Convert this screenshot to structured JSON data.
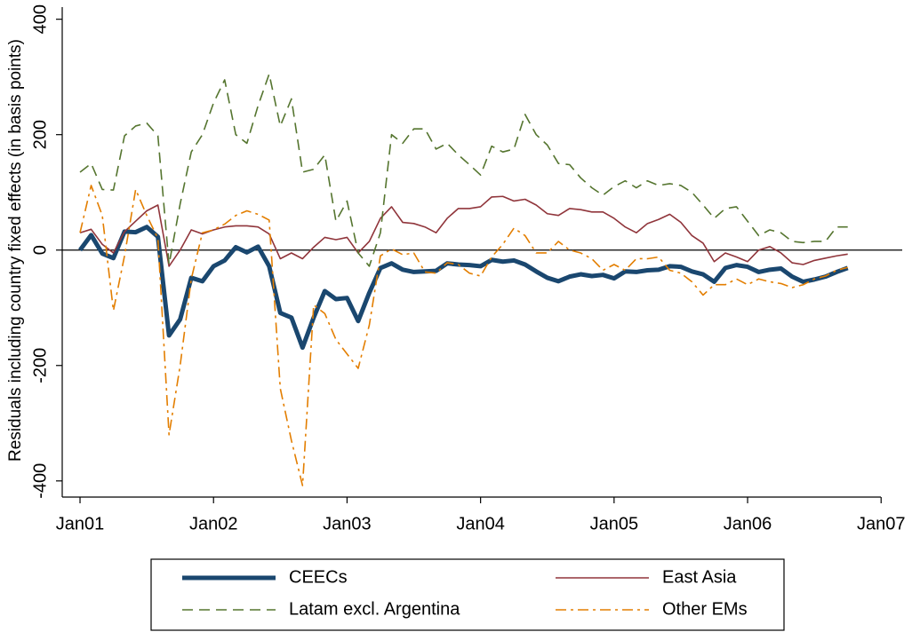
{
  "chart_data": {
    "type": "line",
    "y_label": "Residuals including country fixed effects (in basis points)",
    "x": [
      0,
      1,
      2,
      3,
      4,
      5,
      6,
      7,
      8,
      9,
      10,
      11,
      12,
      13,
      14,
      15,
      16,
      17,
      18,
      19,
      20,
      21,
      22,
      23,
      24,
      25,
      26,
      27,
      28,
      29,
      30,
      31,
      32,
      33,
      34,
      35,
      36,
      37,
      38,
      39,
      40,
      41,
      42,
      43,
      44,
      45,
      46,
      47,
      48,
      49,
      50,
      51,
      52,
      53,
      54,
      55,
      56,
      57,
      58,
      59,
      60,
      61,
      62,
      63,
      64,
      65,
      66,
      67,
      68,
      69
    ],
    "xlim": [
      -1.6,
      72.3
    ],
    "xticks": [
      {
        "value": 0,
        "label": "Jan01"
      },
      {
        "value": 12,
        "label": "Jan02"
      },
      {
        "value": 24,
        "label": "Jan03"
      },
      {
        "value": 36,
        "label": "Jan04"
      },
      {
        "value": 48,
        "label": "Jan05"
      },
      {
        "value": 60,
        "label": "Jan06"
      },
      {
        "value": 72,
        "label": "Jan07"
      }
    ],
    "ylim": [
      -428,
      421
    ],
    "yticks": [
      -400,
      -200,
      0,
      200,
      400
    ],
    "legend": "bottom",
    "series": [
      {
        "name": "CEECs",
        "color": "#1a476f",
        "width": 5,
        "dash": "none",
        "values": [
          0,
          26,
          -6,
          -14,
          32,
          31,
          40,
          23,
          -148,
          -120,
          -48,
          -54,
          -28,
          -18,
          5,
          -4,
          6,
          -28,
          -109,
          -117,
          -169,
          -117,
          -71,
          -85,
          -83,
          -123,
          -74,
          -31,
          -23,
          -34,
          -38,
          -37,
          -36,
          -23,
          -25,
          -26,
          -28,
          -17,
          -20,
          -18,
          -25,
          -37,
          -48,
          -54,
          -46,
          -42,
          -45,
          -43,
          -49,
          -37,
          -38,
          -35,
          -34,
          -28,
          -29,
          -37,
          -42,
          -55,
          -31,
          -26,
          -29,
          -38,
          -34,
          -32,
          -46,
          -55,
          -51,
          -46,
          -38,
          -31
        ]
      },
      {
        "name": "East Asia",
        "color": "#90353b",
        "width": 1.6,
        "dash": "none",
        "values": [
          30,
          36,
          10,
          -5,
          32,
          50,
          68,
          78,
          -28,
          0,
          35,
          28,
          35,
          40,
          42,
          42,
          40,
          28,
          -15,
          -5,
          -15,
          5,
          22,
          18,
          22,
          -5,
          15,
          55,
          75,
          48,
          46,
          40,
          30,
          55,
          72,
          72,
          75,
          92,
          93,
          85,
          88,
          78,
          63,
          60,
          72,
          70,
          66,
          66,
          55,
          40,
          30,
          46,
          53,
          62,
          48,
          25,
          12,
          -20,
          -5,
          -12,
          -20,
          0,
          6,
          -5,
          -22,
          -25,
          -18,
          -14,
          -10,
          -7
        ]
      },
      {
        "name": "Latam excl. Argentina",
        "color": "#55752f",
        "width": 1.6,
        "dash": "12 7",
        "values": [
          135,
          150,
          105,
          104,
          198,
          215,
          220,
          198,
          -25,
          80,
          170,
          200,
          255,
          295,
          200,
          185,
          250,
          305,
          215,
          262,
          135,
          140,
          165,
          50,
          85,
          -5,
          -28,
          30,
          200,
          185,
          210,
          210,
          175,
          185,
          165,
          148,
          130,
          180,
          170,
          175,
          235,
          200,
          182,
          150,
          148,
          125,
          108,
          95,
          110,
          120,
          108,
          120,
          112,
          115,
          112,
          100,
          78,
          55,
          72,
          75,
          50,
          25,
          35,
          30,
          15,
          13,
          15,
          15,
          40,
          40
        ]
      },
      {
        "name": "Other EMs",
        "color": "#e37e00",
        "width": 1.6,
        "dash": "12 5 3 5",
        "values": [
          30,
          112,
          60,
          -105,
          -10,
          105,
          60,
          20,
          -320,
          -200,
          -50,
          30,
          35,
          45,
          60,
          68,
          62,
          52,
          -240,
          -330,
          -408,
          -95,
          -110,
          -155,
          -180,
          -205,
          -130,
          -10,
          2,
          -8,
          -5,
          -38,
          -40,
          -22,
          -25,
          -40,
          -45,
          -12,
          10,
          38,
          25,
          -5,
          -5,
          15,
          0,
          -5,
          -15,
          -35,
          -25,
          -35,
          -15,
          -15,
          -12,
          -35,
          -40,
          -55,
          -78,
          -60,
          -60,
          -50,
          -60,
          -50,
          -55,
          -58,
          -65,
          -60,
          -50,
          -45,
          -35,
          -30
        ]
      }
    ]
  }
}
